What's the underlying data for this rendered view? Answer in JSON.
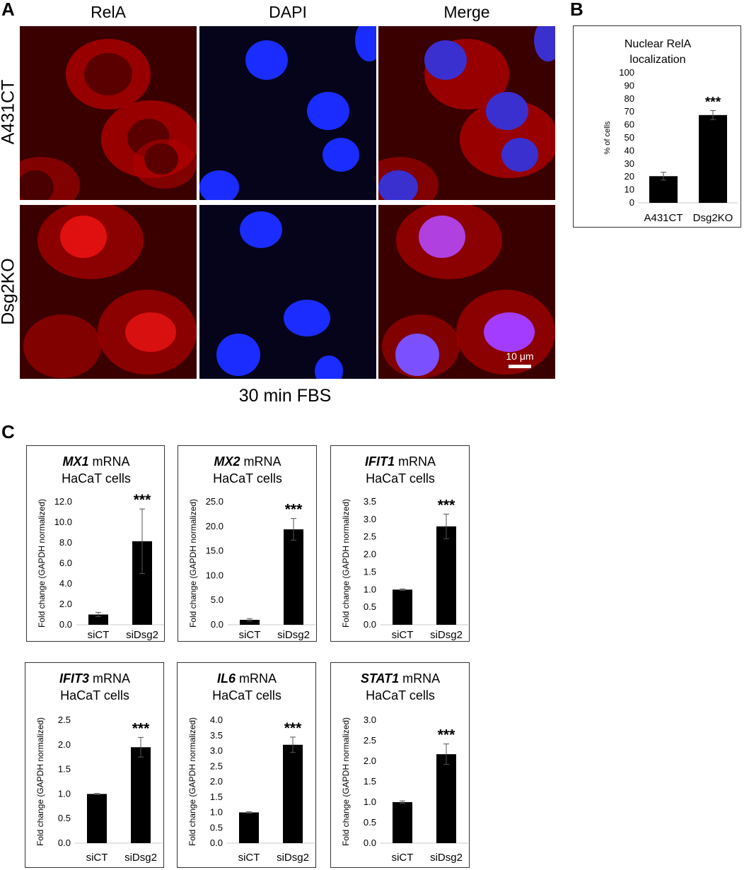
{
  "panel_letters": {
    "a": "A",
    "b": "B",
    "c": "C"
  },
  "panelA": {
    "columns": [
      "RelA",
      "DAPI",
      "Merge"
    ],
    "rows": [
      "A431CT",
      "Dsg2KO"
    ],
    "scale_bar": "10 μm",
    "caption": "30 min FBS"
  },
  "colors": {
    "rela": "#c80000",
    "dapi": "#1a2cff",
    "bar": "#000000",
    "merge_nucleus": "#a43cff"
  },
  "chart_data": [
    {
      "type": "bar",
      "panel": "B",
      "title": "Nuclear RelA localization",
      "title_lines": [
        "Nuclear RelA",
        "localization"
      ],
      "ylabel": "% of cells",
      "categories": [
        "A431CT",
        "Dsg2KO"
      ],
      "values": [
        20.5,
        67.5
      ],
      "errors": [
        3,
        3.5
      ],
      "ylim": [
        0,
        100
      ],
      "yticks": [
        "0",
        "10",
        "20",
        "30",
        "40",
        "50",
        "60",
        "70",
        "80",
        "90",
        "100"
      ],
      "significance": "***"
    },
    {
      "type": "bar",
      "panel": "C",
      "gene": "MX1",
      "title_rest": " mRNA",
      "subtitle": "HaCaT cells",
      "ylabel": "Fold change (GAPDH normalized)",
      "categories": [
        "siCT",
        "siDsg2"
      ],
      "values": [
        1.0,
        8.15
      ],
      "errors": [
        0.2,
        3.15
      ],
      "ylim": [
        0,
        12
      ],
      "yticks": [
        "0.0",
        "2.0",
        "4.0",
        "6.0",
        "8.0",
        "10.0",
        "12.0"
      ],
      "significance": "***"
    },
    {
      "type": "bar",
      "panel": "C",
      "gene": "MX2",
      "title_rest": " mRNA",
      "subtitle": "HaCaT cells",
      "ylabel": "Fold change (GAPDH normalized)",
      "categories": [
        "siCT",
        "siDsg2"
      ],
      "values": [
        1.0,
        19.4
      ],
      "errors": [
        0.25,
        2.2
      ],
      "ylim": [
        0,
        25
      ],
      "yticks": [
        "0.0",
        "5.0",
        "10.0",
        "15.0",
        "20.0",
        "25.0"
      ],
      "significance": "***"
    },
    {
      "type": "bar",
      "panel": "C",
      "gene": "IFIT1",
      "title_rest": " mRNA",
      "subtitle": "HaCaT cells",
      "ylabel": "Fold change (GAPDH normalized)",
      "categories": [
        "siCT",
        "siDsg2"
      ],
      "values": [
        1.0,
        2.8
      ],
      "errors": [
        0.02,
        0.35
      ],
      "ylim": [
        0,
        3.5
      ],
      "yticks": [
        "0.0",
        "0.5",
        "1.0",
        "1.5",
        "2.0",
        "2.5",
        "3.0",
        "3.5"
      ],
      "significance": "***"
    },
    {
      "type": "bar",
      "panel": "C",
      "gene": "IFIT3",
      "title_rest": " mRNA",
      "subtitle": "HaCaT cells",
      "ylabel": "Fold change (GAPDH normalized)",
      "categories": [
        "siCT",
        "siDsg2"
      ],
      "values": [
        1.0,
        1.95
      ],
      "errors": [
        0.01,
        0.2
      ],
      "ylim": [
        0,
        2.5
      ],
      "yticks": [
        "0.0",
        "0.5",
        "1.0",
        "1.5",
        "2.0",
        "2.5"
      ],
      "significance": "***"
    },
    {
      "type": "bar",
      "panel": "C",
      "gene": "IL6",
      "title_rest": " mRNA",
      "subtitle": "HaCaT cells",
      "ylabel": "Fold change (GAPDH normalized)",
      "categories": [
        "siCT",
        "siDsg2"
      ],
      "values": [
        1.0,
        3.2
      ],
      "errors": [
        0.02,
        0.25
      ],
      "ylim": [
        0,
        4.0
      ],
      "yticks": [
        "0.0",
        "0.5",
        "1.0",
        "1.5",
        "2.0",
        "2.5",
        "3.0",
        "3.5",
        "4.0"
      ],
      "significance": "***"
    },
    {
      "type": "bar",
      "panel": "C",
      "gene": "STAT1",
      "title_rest": " mRNA",
      "subtitle": "HaCaT cells",
      "ylabel": "Fold change (GAPDH normalized)",
      "categories": [
        "siCT",
        "siDsg2"
      ],
      "values": [
        1.0,
        2.17
      ],
      "errors": [
        0.03,
        0.25
      ],
      "ylim": [
        0,
        3.0
      ],
      "yticks": [
        "0.0",
        "0.5",
        "1.0",
        "1.5",
        "2.0",
        "2.5",
        "3.0"
      ],
      "significance": "***"
    }
  ]
}
